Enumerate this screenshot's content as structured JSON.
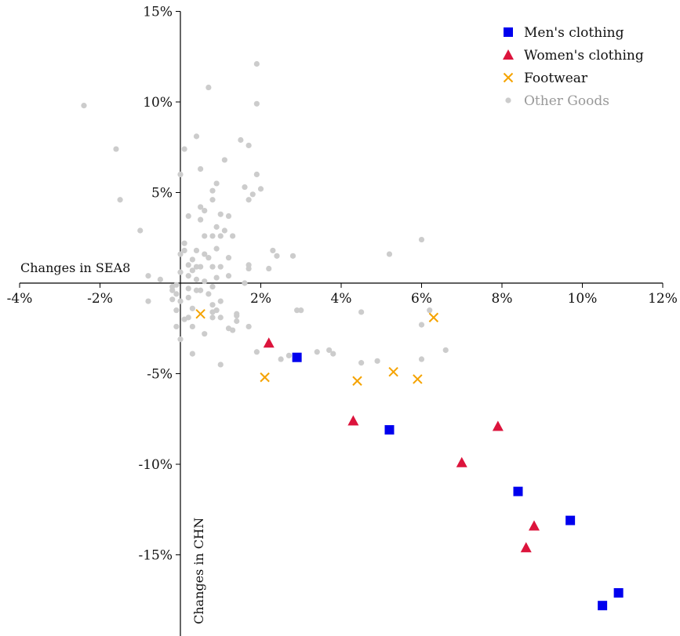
{
  "chart_data": {
    "type": "scatter",
    "title": "",
    "xlabel": "Changes in SEA8",
    "ylabel": "Changes in CHN",
    "xlim": [
      -4,
      12
    ],
    "ylim": [
      -19.5,
      15
    ],
    "x_ticks": [
      -4,
      -2,
      2,
      4,
      6,
      8,
      10,
      12
    ],
    "x_tick_labels": [
      "-4%",
      "-2%",
      "2%",
      "4%",
      "6%",
      "8%",
      "10%",
      "12%"
    ],
    "y_ticks": [
      15,
      10,
      5,
      -5,
      -10,
      -15
    ],
    "y_tick_labels": [
      "15%",
      "10%",
      "5%",
      "-5%",
      "-10%",
      "-15%"
    ],
    "grid": false,
    "legend_position": "top-right",
    "series": [
      {
        "name": "Men's clothing",
        "marker": "square",
        "color": "#0000ee",
        "points": [
          [
            2.9,
            -4.1
          ],
          [
            5.2,
            -8.1
          ],
          [
            8.4,
            -11.5
          ],
          [
            9.7,
            -13.1
          ],
          [
            10.5,
            -17.8
          ],
          [
            10.9,
            -17.1
          ]
        ]
      },
      {
        "name": "Women's clothing",
        "marker": "triangle",
        "color": "#dc143c",
        "points": [
          [
            2.2,
            -3.3
          ],
          [
            4.3,
            -7.6
          ],
          [
            7.0,
            -9.9
          ],
          [
            7.9,
            -7.9
          ],
          [
            8.8,
            -13.4
          ],
          [
            8.6,
            -14.6
          ]
        ]
      },
      {
        "name": "Footwear",
        "marker": "x",
        "color": "#f5a300",
        "points": [
          [
            0.5,
            -1.7
          ],
          [
            2.1,
            -5.2
          ],
          [
            4.4,
            -5.4
          ],
          [
            5.3,
            -4.9
          ],
          [
            5.9,
            -5.3
          ],
          [
            6.3,
            -1.9
          ]
        ]
      },
      {
        "name": "Other Goods",
        "marker": "circle",
        "color": "#cccccc",
        "legend_text_color": "#999999",
        "points": [
          [
            -2.4,
            9.8
          ],
          [
            -1.6,
            7.4
          ],
          [
            -1.5,
            4.6
          ],
          [
            -1.0,
            2.9
          ],
          [
            -0.8,
            0.4
          ],
          [
            -0.8,
            -1.0
          ],
          [
            -0.5,
            0.2
          ],
          [
            -0.2,
            -0.2
          ],
          [
            -0.2,
            -0.4
          ],
          [
            -0.1,
            -0.6
          ],
          [
            -0.2,
            -0.9
          ],
          [
            0.0,
            -1.0
          ],
          [
            -0.1,
            -0.1
          ],
          [
            -0.1,
            -1.5
          ],
          [
            0.0,
            0.6
          ],
          [
            0.0,
            1.6
          ],
          [
            0.1,
            1.8
          ],
          [
            0.1,
            2.2
          ],
          [
            0.0,
            6.0
          ],
          [
            0.1,
            7.4
          ],
          [
            -0.1,
            -2.4
          ],
          [
            0.0,
            -3.1
          ],
          [
            0.1,
            -2.0
          ],
          [
            0.2,
            -0.3
          ],
          [
            0.2,
            0.4
          ],
          [
            0.2,
            1.0
          ],
          [
            0.2,
            -0.8
          ],
          [
            0.3,
            -1.4
          ],
          [
            0.2,
            -1.9
          ],
          [
            0.3,
            -2.4
          ],
          [
            0.3,
            -3.9
          ],
          [
            0.2,
            3.7
          ],
          [
            0.3,
            1.3
          ],
          [
            0.3,
            0.7
          ],
          [
            0.4,
            1.8
          ],
          [
            0.4,
            0.2
          ],
          [
            0.4,
            -0.4
          ],
          [
            0.4,
            0.9
          ],
          [
            0.4,
            8.1
          ],
          [
            0.5,
            6.3
          ],
          [
            0.5,
            3.5
          ],
          [
            0.5,
            4.2
          ],
          [
            0.5,
            0.9
          ],
          [
            0.5,
            -0.4
          ],
          [
            0.6,
            4.0
          ],
          [
            0.6,
            1.6
          ],
          [
            0.6,
            2.6
          ],
          [
            0.6,
            0.1
          ],
          [
            0.7,
            -0.6
          ],
          [
            0.7,
            1.4
          ],
          [
            0.7,
            10.8
          ],
          [
            0.8,
            4.6
          ],
          [
            0.8,
            2.6
          ],
          [
            0.8,
            5.1
          ],
          [
            0.8,
            -0.2
          ],
          [
            0.8,
            0.9
          ],
          [
            0.8,
            -1.9
          ],
          [
            0.8,
            -1.2
          ],
          [
            0.9,
            5.5
          ],
          [
            0.9,
            1.9
          ],
          [
            0.9,
            0.3
          ],
          [
            0.9,
            -1.5
          ],
          [
            0.9,
            3.1
          ],
          [
            1.0,
            2.6
          ],
          [
            1.0,
            3.8
          ],
          [
            1.0,
            -1.0
          ],
          [
            1.0,
            0.9
          ],
          [
            1.0,
            -1.9
          ],
          [
            1.0,
            -4.5
          ],
          [
            1.1,
            6.8
          ],
          [
            1.1,
            2.9
          ],
          [
            1.2,
            3.7
          ],
          [
            1.2,
            1.4
          ],
          [
            1.2,
            0.4
          ],
          [
            1.2,
            -2.5
          ],
          [
            1.3,
            2.6
          ],
          [
            1.3,
            -2.6
          ],
          [
            1.4,
            -1.8
          ],
          [
            1.4,
            -2.1
          ],
          [
            1.5,
            7.9
          ],
          [
            1.6,
            5.3
          ],
          [
            1.6,
            0.0
          ],
          [
            1.7,
            7.6
          ],
          [
            1.7,
            4.6
          ],
          [
            1.7,
            1.0
          ],
          [
            1.7,
            0.8
          ],
          [
            1.7,
            -2.4
          ],
          [
            1.8,
            4.9
          ],
          [
            1.9,
            6.0
          ],
          [
            1.9,
            9.9
          ],
          [
            1.9,
            12.1
          ],
          [
            2.0,
            5.2
          ],
          [
            1.9,
            -3.8
          ],
          [
            2.2,
            0.8
          ],
          [
            2.3,
            1.8
          ],
          [
            2.4,
            1.5
          ],
          [
            2.5,
            -4.2
          ],
          [
            2.7,
            -4.0
          ],
          [
            2.8,
            1.5
          ],
          [
            3.0,
            -1.5
          ],
          [
            3.4,
            -3.8
          ],
          [
            3.7,
            -3.7
          ],
          [
            3.8,
            -3.9
          ],
          [
            4.5,
            -1.6
          ],
          [
            4.5,
            -4.4
          ],
          [
            4.9,
            -4.3
          ],
          [
            5.2,
            1.6
          ],
          [
            6.0,
            2.4
          ],
          [
            6.0,
            -4.2
          ],
          [
            6.0,
            -2.3
          ],
          [
            6.6,
            -3.7
          ],
          [
            6.2,
            -1.5
          ],
          [
            2.9,
            -1.5
          ],
          [
            1.4,
            -1.7
          ],
          [
            0.8,
            -1.6
          ],
          [
            0.6,
            -2.8
          ]
        ]
      }
    ]
  }
}
